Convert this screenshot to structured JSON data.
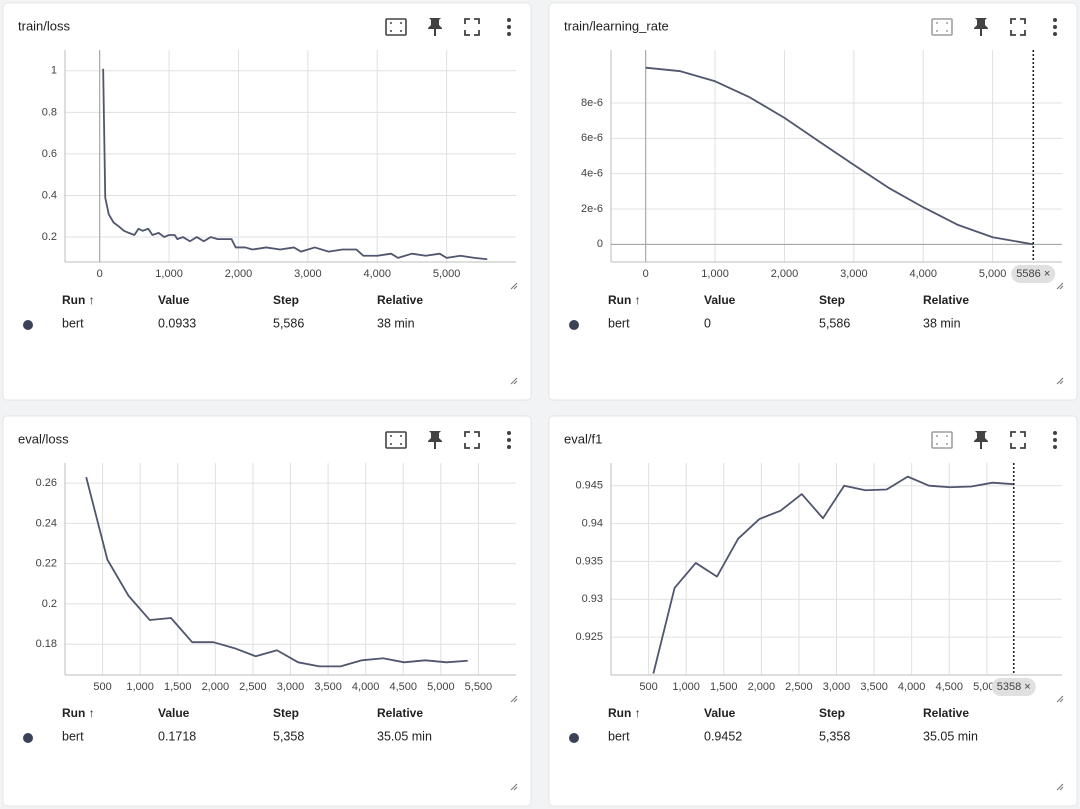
{
  "panels": [
    {
      "title": "train/loss",
      "chart_data": {
        "type": "line",
        "color": "#4f566e",
        "x": [
          50,
          80,
          130,
          200,
          280,
          350,
          420,
          500,
          560,
          620,
          700,
          760,
          850,
          930,
          1000,
          1080,
          1120,
          1200,
          1300,
          1400,
          1500,
          1600,
          1700,
          1800,
          1900,
          1960,
          2100,
          2200,
          2400,
          2600,
          2800,
          2900,
          3100,
          3300,
          3500,
          3700,
          3800,
          4000,
          4200,
          4300,
          4500,
          4700,
          4900,
          5000,
          5200,
          5400,
          5586
        ],
        "values": [
          1.01,
          0.39,
          0.31,
          0.27,
          0.25,
          0.23,
          0.22,
          0.21,
          0.24,
          0.23,
          0.24,
          0.21,
          0.22,
          0.2,
          0.21,
          0.21,
          0.19,
          0.2,
          0.18,
          0.2,
          0.18,
          0.2,
          0.19,
          0.19,
          0.19,
          0.15,
          0.15,
          0.14,
          0.15,
          0.14,
          0.15,
          0.13,
          0.15,
          0.13,
          0.14,
          0.14,
          0.11,
          0.11,
          0.12,
          0.1,
          0.12,
          0.11,
          0.12,
          0.1,
          0.11,
          0.1,
          0.0933
        ],
        "xlim": [
          -500,
          6000
        ],
        "ylim": [
          0.08,
          1.1
        ],
        "xticks": [
          0,
          {
            "value": 1000,
            "label": "1,000"
          },
          {
            "value": 2000,
            "label": "2,000"
          },
          {
            "value": 3000,
            "label": "3,000"
          },
          {
            "value": 4000,
            "label": "4,000"
          },
          {
            "value": 5000,
            "label": "5,000"
          }
        ],
        "yticks": [
          0.2,
          0.4,
          0.6,
          0.8,
          1
        ],
        "grid": true
      },
      "table": {
        "headers": [
          "Run ↑",
          "Value",
          "Step",
          "Relative"
        ],
        "rows": [
          [
            "bert",
            "0.0933",
            "5,586",
            "38 min"
          ]
        ]
      }
    },
    {
      "title": "train/learning_rate",
      "chart_data": {
        "type": "line",
        "color": "#4f566e",
        "x": [
          0,
          500,
          1000,
          1500,
          2000,
          2500,
          3000,
          3500,
          4000,
          4500,
          5000,
          5586
        ],
        "values": [
          1e-05,
          9.8e-06,
          9.23e-06,
          8.32e-06,
          7.16e-06,
          5.82e-06,
          4.5e-06,
          3.2e-06,
          2.1e-06,
          1.1e-06,
          4e-07,
          0
        ],
        "xlim": [
          -500,
          6000
        ],
        "ylim": [
          -1e-06,
          1.1e-05
        ],
        "xticks": [
          0,
          {
            "value": 1000,
            "label": "1,000"
          },
          {
            "value": 2000,
            "label": "2,000"
          },
          {
            "value": 3000,
            "label": "3,000"
          },
          {
            "value": 4000,
            "label": "4,000"
          },
          {
            "value": 5000,
            "label": "5,000"
          }
        ],
        "yticks": [
          0,
          {
            "value": 2e-06,
            "label": "2e-6"
          },
          {
            "value": 4e-06,
            "label": "4e-6"
          },
          {
            "value": 6e-06,
            "label": "6e-6"
          },
          {
            "value": 8e-06,
            "label": "8e-6"
          }
        ],
        "grid": true,
        "marker": {
          "x": 5586,
          "label": "5586 ×"
        }
      },
      "table": {
        "headers": [
          "Run ↑",
          "Value",
          "Step",
          "Relative"
        ],
        "rows": [
          [
            "bert",
            "0",
            "5,586",
            "38 min"
          ]
        ]
      }
    },
    {
      "title": "eval/loss",
      "chart_data": {
        "type": "line",
        "color": "#4f566e",
        "x": [
          282,
          564,
          846,
          1128,
          1410,
          1692,
          1974,
          2256,
          2538,
          2820,
          3102,
          3384,
          3666,
          3948,
          4230,
          4512,
          4794,
          5076,
          5358
        ],
        "values": [
          0.263,
          0.222,
          0.204,
          0.192,
          0.193,
          0.181,
          0.181,
          0.178,
          0.174,
          0.177,
          0.171,
          0.169,
          0.169,
          0.172,
          0.173,
          0.171,
          0.172,
          0.171,
          0.1718
        ],
        "xlim": [
          0,
          6000
        ],
        "ylim": [
          0.1647,
          0.27
        ],
        "xticks": [
          500,
          {
            "value": 1000,
            "label": "1,000"
          },
          {
            "value": 1500,
            "label": "1,500"
          },
          {
            "value": 2000,
            "label": "2,000"
          },
          {
            "value": 2500,
            "label": "2,500"
          },
          {
            "value": 3000,
            "label": "3,000"
          },
          {
            "value": 3500,
            "label": "3,500"
          },
          {
            "value": 4000,
            "label": "4,000"
          },
          {
            "value": 4500,
            "label": "4,500"
          },
          {
            "value": 5000,
            "label": "5,000"
          },
          {
            "value": 5500,
            "label": "5,500"
          }
        ],
        "yticks": [
          0.18,
          0.2,
          0.22,
          0.24,
          0.26
        ],
        "grid": true
      },
      "table": {
        "headers": [
          "Run ↑",
          "Value",
          "Step",
          "Relative"
        ],
        "rows": [
          [
            "bert",
            "0.1718",
            "5,358",
            "35.05 min"
          ]
        ]
      }
    },
    {
      "title": "eval/f1",
      "chart_data": {
        "type": "line",
        "color": "#4f566e",
        "x": [
          564,
          846,
          1128,
          1410,
          1692,
          1974,
          2256,
          2538,
          2820,
          3102,
          3384,
          3666,
          3948,
          4230,
          4512,
          4794,
          5076,
          5358
        ],
        "values": [
          0.9202,
          0.9315,
          0.9348,
          0.933,
          0.938,
          0.9406,
          0.9417,
          0.9439,
          0.9407,
          0.945,
          0.9444,
          0.9445,
          0.9462,
          0.945,
          0.9448,
          0.9449,
          0.9454,
          0.9452
        ],
        "xlim": [
          0,
          6000
        ],
        "ylim": [
          0.92,
          0.948
        ],
        "xticks": [
          500,
          {
            "value": 1000,
            "label": "1,000"
          },
          {
            "value": 1500,
            "label": "1,500"
          },
          {
            "value": 2000,
            "label": "2,000"
          },
          {
            "value": 2500,
            "label": "2,500"
          },
          {
            "value": 3000,
            "label": "3,000"
          },
          {
            "value": 3500,
            "label": "3,500"
          },
          {
            "value": 4000,
            "label": "4,000"
          },
          {
            "value": 4500,
            "label": "4,500"
          },
          {
            "value": 5000,
            "label": "5,000"
          }
        ],
        "yticks": [
          0.925,
          0.93,
          0.935,
          0.94,
          0.945
        ],
        "grid": true,
        "marker": {
          "x": 5358,
          "label": "5358 ×"
        }
      },
      "table": {
        "headers": [
          "Run ↑",
          "Value",
          "Step",
          "Relative"
        ],
        "rows": [
          [
            "bert",
            "0.9452",
            "5,358",
            "35.05 min"
          ]
        ]
      }
    }
  ]
}
